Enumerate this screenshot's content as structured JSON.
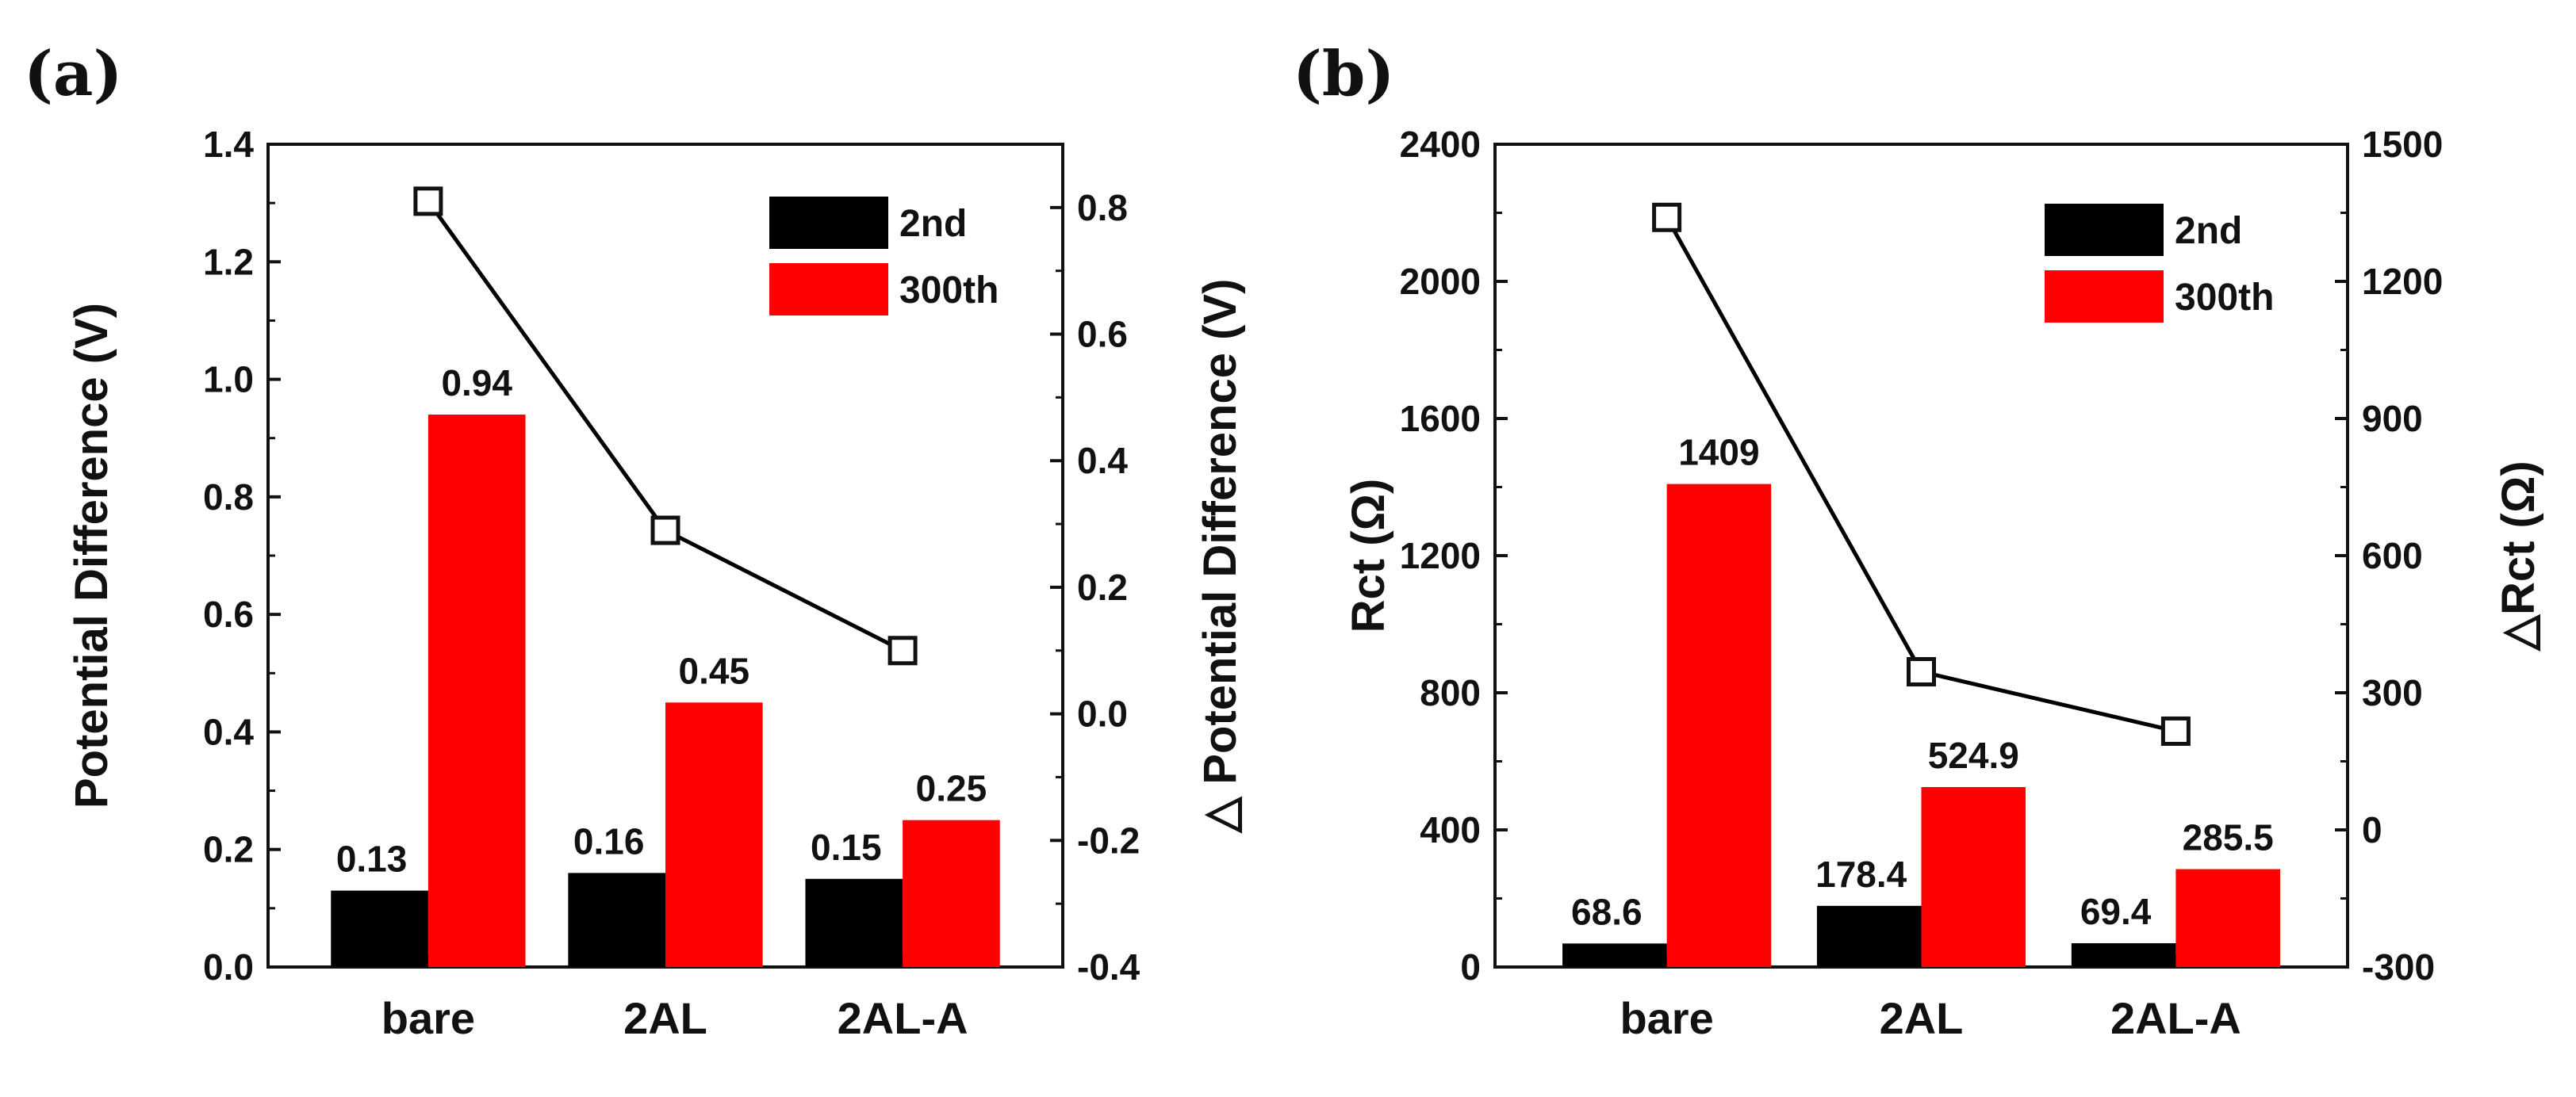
{
  "panels": [
    {
      "label": "(a)"
    },
    {
      "label": "(b)"
    }
  ],
  "colors": {
    "series_2nd": "#000000",
    "series_300th": "#ff0000",
    "line": "#000000"
  },
  "chart_data": [
    {
      "type": "bar",
      "title": "",
      "categories": [
        "bare",
        "2AL",
        "2AL-A"
      ],
      "series": [
        {
          "name": "2nd",
          "values": [
            0.13,
            0.16,
            0.15
          ],
          "labels": [
            "0.13",
            "0.16",
            "0.15"
          ]
        },
        {
          "name": "300th",
          "values": [
            0.94,
            0.45,
            0.25
          ],
          "labels": [
            "0.94",
            "0.45",
            "0.25"
          ]
        }
      ],
      "line_series": {
        "axis": "right",
        "marker": "open-square",
        "values": [
          0.81,
          0.29,
          0.1
        ]
      },
      "ylabel": "Potential Difference (V)",
      "y2label": "△ Potential Difference (V)",
      "ylim": [
        0,
        1.4
      ],
      "yticks": [
        "0.0",
        "0.2",
        "0.4",
        "0.6",
        "0.8",
        "1.0",
        "1.2",
        "1.4"
      ],
      "y2lim": [
        -0.4,
        0.9
      ],
      "y2ticks": [
        "-0.4",
        "-0.2",
        "0.0",
        "0.2",
        "0.4",
        "0.6",
        "0.8"
      ],
      "legend": "top-right",
      "grid": false
    },
    {
      "type": "bar",
      "title": "",
      "categories": [
        "bare",
        "2AL",
        "2AL-A"
      ],
      "series": [
        {
          "name": "2nd",
          "values": [
            68.6,
            178.4,
            69.4
          ],
          "labels": [
            "68.6",
            "178.4",
            "69.4"
          ]
        },
        {
          "name": "300th",
          "values": [
            1409,
            524.9,
            285.5
          ],
          "labels": [
            "1409",
            "524.9",
            "285.5"
          ]
        }
      ],
      "line_series": {
        "axis": "right",
        "marker": "open-square",
        "values": [
          1340,
          346,
          216
        ]
      },
      "ylabel": "Rct (Ω)",
      "y2label": "△Rct (Ω)",
      "ylim": [
        0,
        2400
      ],
      "yticks": [
        "0",
        "400",
        "800",
        "1200",
        "1600",
        "2000",
        "2400"
      ],
      "y2lim": [
        -300,
        1500
      ],
      "y2ticks": [
        "-300",
        "0",
        "300",
        "600",
        "900",
        "1200",
        "1500"
      ],
      "legend": "top-right",
      "grid": false
    }
  ]
}
